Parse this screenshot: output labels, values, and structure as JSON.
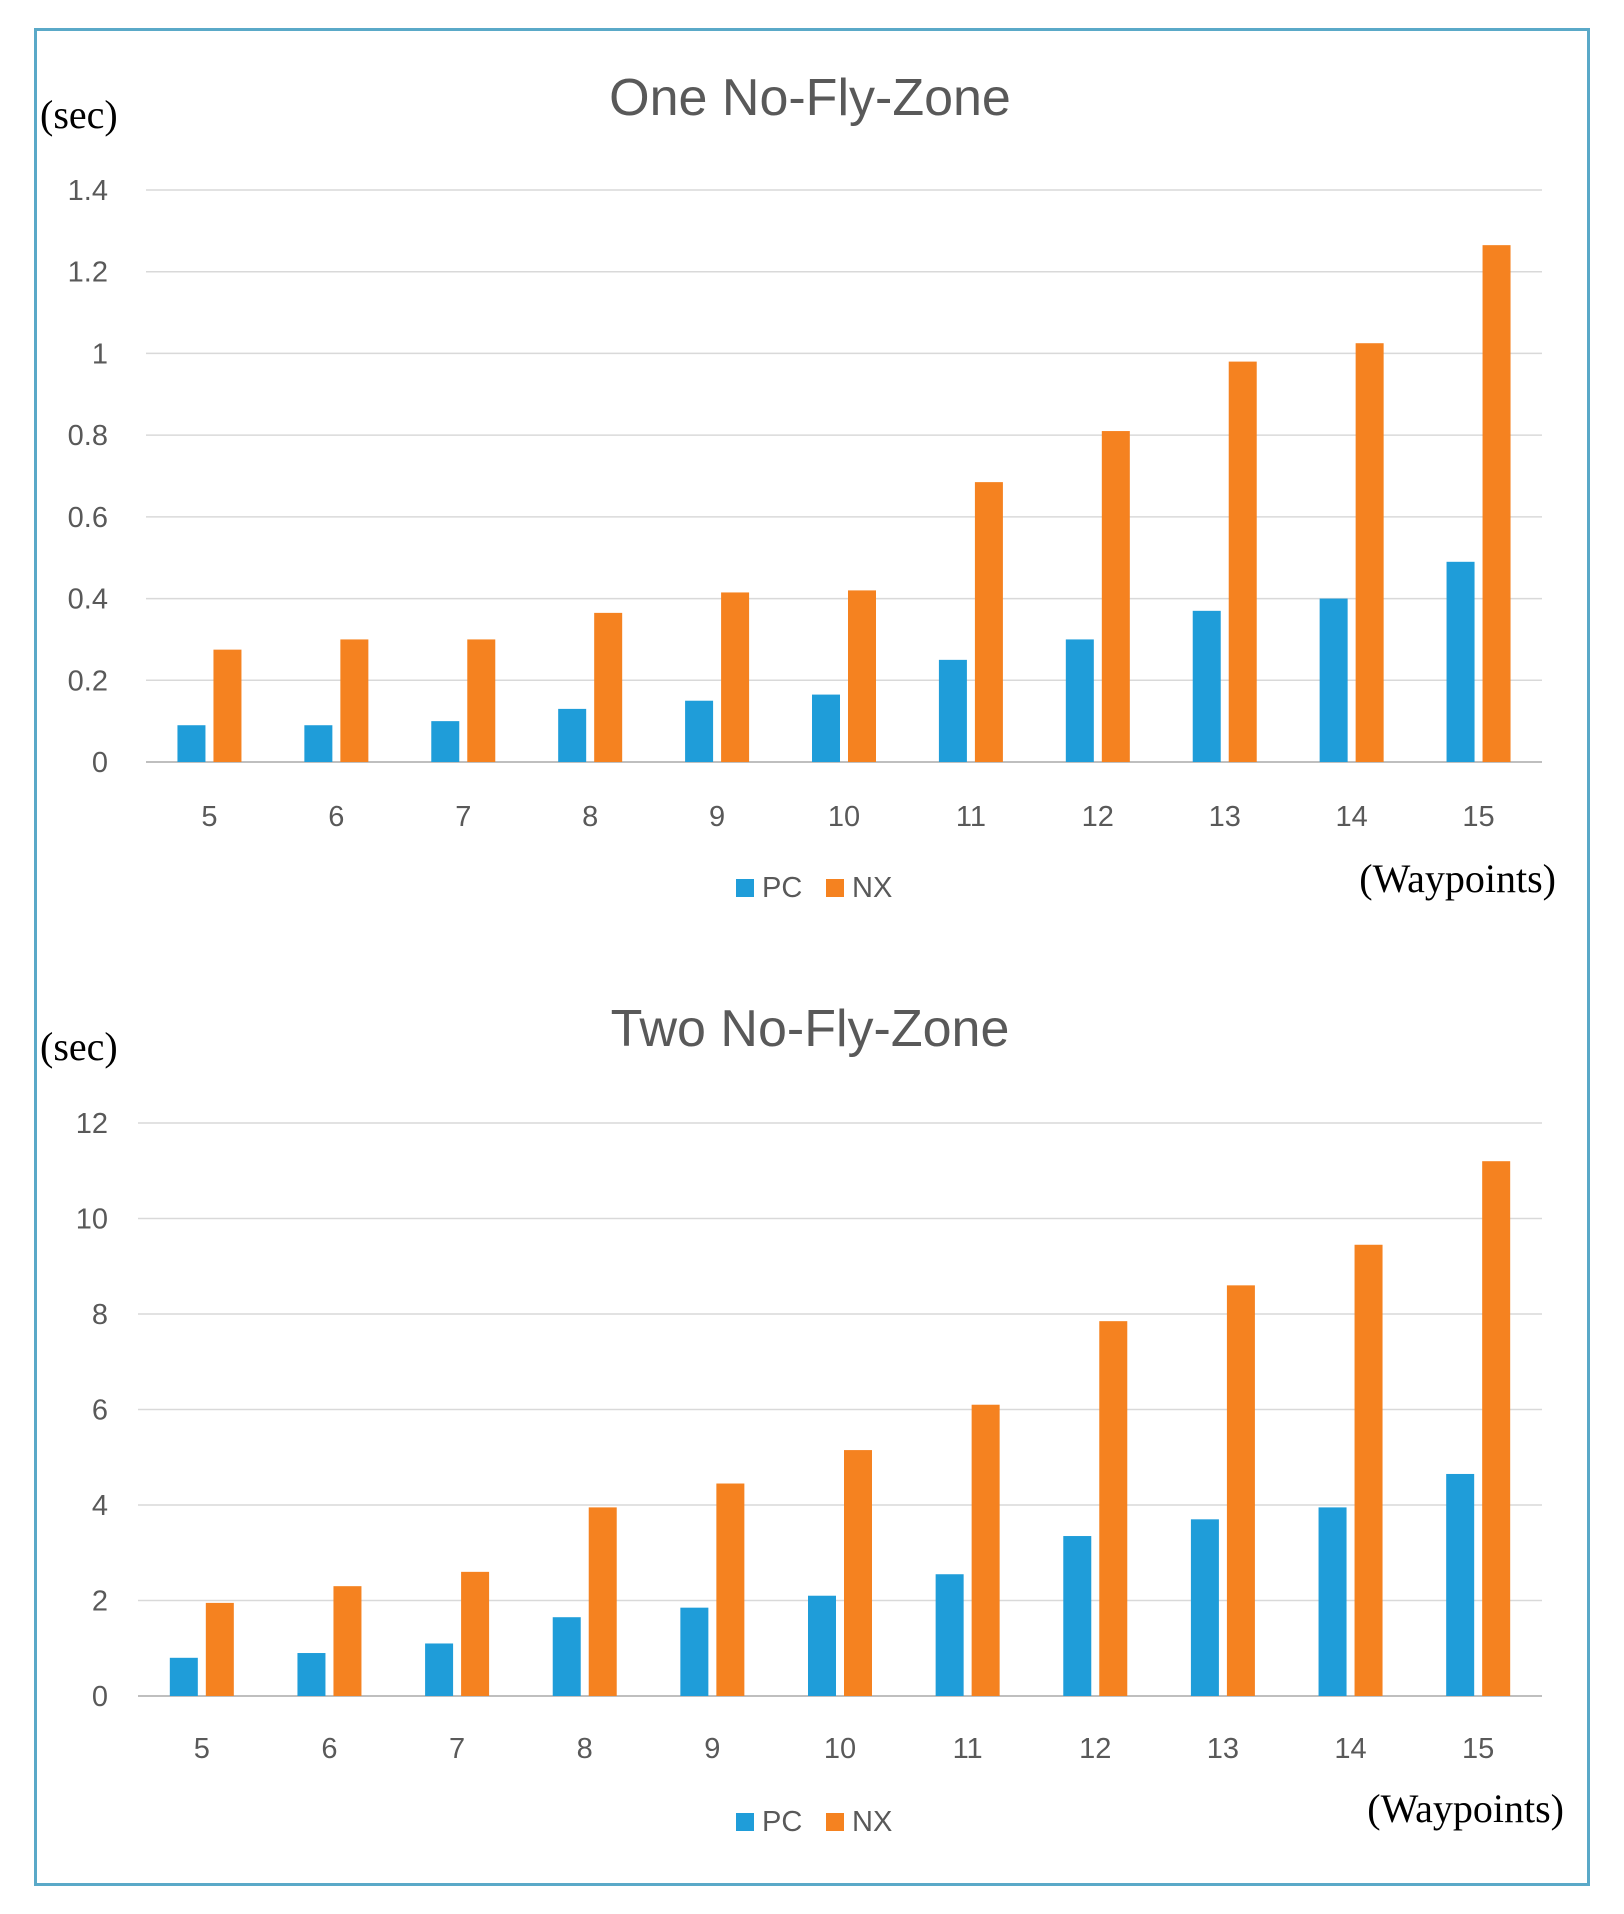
{
  "chart_data": [
    {
      "type": "bar",
      "title": "One No-Fly-Zone",
      "ylabel": "(sec)",
      "xlabel": "(Waypoints)",
      "categories": [
        "5",
        "6",
        "7",
        "8",
        "9",
        "10",
        "11",
        "12",
        "13",
        "14",
        "15"
      ],
      "yticks": [
        "0",
        "0.2",
        "0.4",
        "0.6",
        "0.8",
        "1",
        "1.2",
        "1.4"
      ],
      "ylim": [
        0,
        1.4
      ],
      "series": [
        {
          "name": "PC",
          "color": "#1f9dd9",
          "values": [
            0.09,
            0.09,
            0.1,
            0.13,
            0.15,
            0.165,
            0.25,
            0.3,
            0.37,
            0.4,
            0.49
          ]
        },
        {
          "name": "NX",
          "color": "#f58220",
          "values": [
            0.275,
            0.3,
            0.3,
            0.365,
            0.415,
            0.42,
            0.685,
            0.81,
            0.98,
            1.025,
            1.265
          ]
        }
      ],
      "legend": "bottom-center",
      "grid": true
    },
    {
      "type": "bar",
      "title": "Two No-Fly-Zone",
      "ylabel": "(sec)",
      "xlabel": "(Waypoints)",
      "categories": [
        "5",
        "6",
        "7",
        "8",
        "9",
        "10",
        "11",
        "12",
        "13",
        "14",
        "15"
      ],
      "yticks": [
        "0",
        "2",
        "4",
        "6",
        "8",
        "10",
        "12"
      ],
      "ylim": [
        0,
        12
      ],
      "series": [
        {
          "name": "PC",
          "color": "#1f9dd9",
          "values": [
            0.8,
            0.9,
            1.1,
            1.65,
            1.85,
            2.1,
            2.55,
            3.35,
            3.7,
            3.95,
            4.65
          ]
        },
        {
          "name": "NX",
          "color": "#f58220",
          "values": [
            1.95,
            2.3,
            2.6,
            3.95,
            4.45,
            5.15,
            6.1,
            7.85,
            8.6,
            9.45,
            11.2
          ]
        }
      ],
      "legend": "bottom-center",
      "grid": true
    }
  ]
}
